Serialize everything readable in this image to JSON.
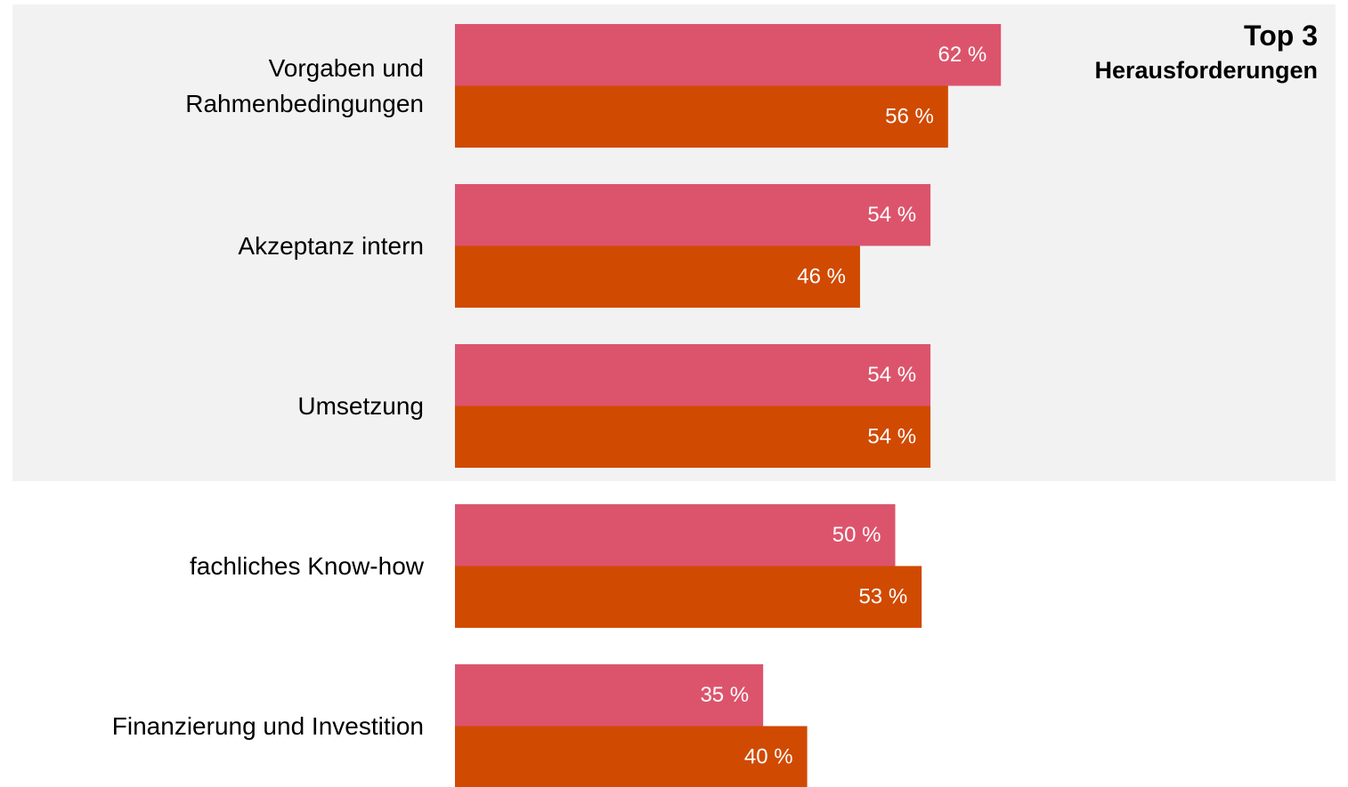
{
  "chart_data": {
    "type": "bar",
    "orientation": "horizontal",
    "annotations": [
      "Top 3",
      "Herausforderungen"
    ],
    "categories": [
      "Vorgaben und\nRahmenbedingungen",
      "Akzeptanz intern",
      "Umsetzung",
      "fachliches Know-how",
      "Finanzierung und Investition"
    ],
    "series": [
      {
        "color": "#dc546c",
        "values": [
          62,
          54,
          54,
          50,
          35
        ],
        "value_labels": [
          "62 %",
          "54 %",
          "54 %",
          "50 %",
          "35 %"
        ]
      },
      {
        "color": "#d04a02",
        "values": [
          56,
          46,
          54,
          53,
          40
        ],
        "value_labels": [
          "56 %",
          "46 %",
          "54 %",
          "53 %",
          "40 %"
        ]
      }
    ],
    "xlim": [
      0,
      100
    ]
  }
}
